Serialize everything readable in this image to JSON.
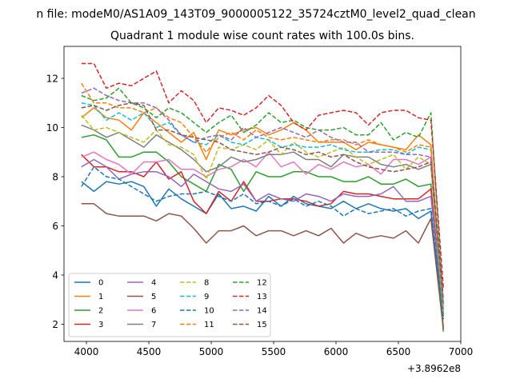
{
  "figure": {
    "suptitle": "n file: modeM0/AS1A09_143T09_9000005122_35724cztM0_level2_quad_clean",
    "offset_label": "+3.8962e8"
  },
  "chart_data": {
    "type": "line",
    "title": "Quadrant 1 module wise count rates with 100.0s bins.",
    "xlabel": "",
    "ylabel": "",
    "xlim": [
      3820,
      7000
    ],
    "ylim": [
      1.3,
      13.3
    ],
    "xticks": [
      4000,
      4500,
      5000,
      5500,
      6000,
      6500,
      7000
    ],
    "yticks": [
      2,
      4,
      6,
      8,
      10,
      12
    ],
    "grid": false,
    "legend": {
      "placement": "lower-left",
      "columns": 4
    },
    "x": [
      3960,
      4060,
      4160,
      4260,
      4360,
      4460,
      4560,
      4660,
      4760,
      4860,
      4960,
      5060,
      5160,
      5260,
      5360,
      5460,
      5560,
      5660,
      5760,
      5860,
      5960,
      6060,
      6160,
      6260,
      6360,
      6460,
      6560,
      6660,
      6760,
      6860
    ],
    "series": [
      {
        "name": "0",
        "color": "#1f77b4",
        "dash": "solid",
        "values": [
          7.8,
          7.4,
          7.8,
          7.7,
          7.8,
          7.6,
          6.8,
          7.5,
          7.1,
          6.8,
          6.5,
          7.3,
          6.7,
          6.8,
          6.6,
          7.2,
          6.8,
          7.2,
          6.9,
          6.8,
          6.7,
          7.0,
          6.7,
          6.9,
          6.7,
          6.6,
          6.7,
          6.3,
          6.6,
          1.9
        ]
      },
      {
        "name": "1",
        "color": "#ff7f0e",
        "dash": "solid",
        "values": [
          10.4,
          10.8,
          10.4,
          10.3,
          9.9,
          10.6,
          10.2,
          9.8,
          9.4,
          9.8,
          8.7,
          9.9,
          9.7,
          9.9,
          10.0,
          9.7,
          9.9,
          10.2,
          9.9,
          9.4,
          9.4,
          9.4,
          9.1,
          9.4,
          9.3,
          9.2,
          9.1,
          9.7,
          9.3,
          1.8
        ]
      },
      {
        "name": "2",
        "color": "#2ca02c",
        "dash": "solid",
        "values": [
          9.6,
          9.7,
          9.5,
          8.8,
          8.8,
          9.0,
          9.0,
          8.6,
          8.0,
          7.7,
          7.4,
          8.5,
          8.3,
          7.4,
          8.2,
          8.0,
          8.0,
          8.2,
          8.2,
          8.0,
          8.0,
          7.8,
          7.8,
          8.0,
          7.7,
          7.7,
          7.9,
          7.6,
          7.7,
          1.7
        ]
      },
      {
        "name": "3",
        "color": "#d62728",
        "dash": "solid",
        "values": [
          8.9,
          8.4,
          8.4,
          8.2,
          8.2,
          8.0,
          8.6,
          7.9,
          8.2,
          7.0,
          6.5,
          7.4,
          7.0,
          7.8,
          7.0,
          7.0,
          7.1,
          7.1,
          7.0,
          6.8,
          6.9,
          7.4,
          7.3,
          7.3,
          7.2,
          7.1,
          7.1,
          7.1,
          7.5,
          2.4
        ]
      },
      {
        "name": "4",
        "color": "#9467bd",
        "dash": "solid",
        "values": [
          8.4,
          8.7,
          8.4,
          7.9,
          8.1,
          8.2,
          8.2,
          8.0,
          7.6,
          8.1,
          7.8,
          7.5,
          7.4,
          7.7,
          7.0,
          7.3,
          7.1,
          7.0,
          7.3,
          7.2,
          7.0,
          7.3,
          7.2,
          7.2,
          7.3,
          7.6,
          7.0,
          7.0,
          7.2,
          2.5
        ]
      },
      {
        "name": "5",
        "color": "#8c564b",
        "dash": "solid",
        "values": [
          6.9,
          6.9,
          6.5,
          6.4,
          6.4,
          6.4,
          6.2,
          6.5,
          6.4,
          5.9,
          5.3,
          5.8,
          5.8,
          6.0,
          5.6,
          5.8,
          5.8,
          5.6,
          5.8,
          5.6,
          5.9,
          5.3,
          5.7,
          5.5,
          5.6,
          5.5,
          5.8,
          5.3,
          6.3,
          1.8
        ]
      },
      {
        "name": "6",
        "color": "#e377c2",
        "dash": "solid",
        "values": [
          8.8,
          9.0,
          8.7,
          8.5,
          8.1,
          8.6,
          8.6,
          8.7,
          8.3,
          8.3,
          8.0,
          8.3,
          8.4,
          8.7,
          8.4,
          9.0,
          8.4,
          8.6,
          8.1,
          8.5,
          8.3,
          8.6,
          8.4,
          8.5,
          8.1,
          8.7,
          8.7,
          8.5,
          8.8,
          2.5
        ]
      },
      {
        "name": "7",
        "color": "#7f7f7f",
        "dash": "solid",
        "values": [
          10.1,
          9.9,
          9.6,
          9.8,
          9.5,
          9.2,
          9.7,
          9.4,
          9.1,
          8.7,
          8.2,
          8.4,
          8.8,
          8.6,
          8.7,
          8.9,
          8.9,
          9.0,
          8.7,
          8.7,
          8.4,
          8.9,
          8.8,
          8.8,
          8.5,
          8.4,
          8.5,
          8.3,
          8.5,
          2.3
        ]
      },
      {
        "name": "8",
        "color": "#bcbd22",
        "dash": "dashed",
        "values": [
          10.5,
          9.9,
          10.0,
          9.8,
          9.6,
          9.4,
          9.9,
          9.3,
          9.2,
          8.9,
          7.9,
          9.2,
          9.1,
          9.3,
          9.1,
          9.5,
          8.9,
          9.4,
          9.0,
          8.8,
          9.0,
          9.2,
          8.8,
          8.5,
          8.7,
          8.9,
          8.3,
          8.8,
          8.5,
          2.4
        ]
      },
      {
        "name": "9",
        "color": "#17becf",
        "dash": "dashed",
        "values": [
          11.0,
          10.9,
          10.3,
          10.6,
          10.3,
          10.6,
          10.0,
          10.2,
          9.7,
          9.4,
          9.3,
          9.7,
          9.4,
          9.3,
          9.6,
          9.5,
          9.2,
          9.3,
          9.2,
          9.2,
          9.3,
          9.1,
          9.0,
          9.0,
          9.1,
          9.1,
          8.9,
          9.2,
          9.1,
          2.6
        ]
      },
      {
        "name": "10",
        "color": "#1f77b4",
        "dash": "dashed",
        "values": [
          7.6,
          8.4,
          8.0,
          7.9,
          7.6,
          7.3,
          7.0,
          7.2,
          7.3,
          7.3,
          7.4,
          7.2,
          7.0,
          7.3,
          6.9,
          7.0,
          6.8,
          7.1,
          6.8,
          7.0,
          6.8,
          6.4,
          6.7,
          6.5,
          6.6,
          6.7,
          6.4,
          6.6,
          6.7,
          2.2
        ]
      },
      {
        "name": "11",
        "color": "#ff7f0e",
        "dash": "dashed",
        "values": [
          11.8,
          11.0,
          11.0,
          10.8,
          10.8,
          10.6,
          10.8,
          10.4,
          10.2,
          9.6,
          9.0,
          9.6,
          9.8,
          9.5,
          9.9,
          9.6,
          9.5,
          9.6,
          9.5,
          9.4,
          9.5,
          9.5,
          9.3,
          9.5,
          9.3,
          9.2,
          9.0,
          9.3,
          9.2,
          2.7
        ]
      },
      {
        "name": "12",
        "color": "#2ca02c",
        "dash": "dashed",
        "values": [
          11.3,
          11.1,
          11.2,
          11.6,
          11.0,
          10.8,
          10.4,
          10.8,
          10.6,
          10.2,
          9.8,
          10.2,
          10.5,
          9.8,
          10.1,
          10.6,
          10.2,
          10.3,
          10.0,
          9.9,
          9.9,
          10.0,
          9.7,
          9.7,
          10.2,
          9.5,
          9.8,
          9.6,
          10.6,
          2.9
        ]
      },
      {
        "name": "13",
        "color": "#d62728",
        "dash": "dashed",
        "values": [
          12.6,
          12.6,
          11.6,
          11.8,
          11.7,
          12.0,
          12.3,
          11.0,
          11.5,
          11.1,
          10.2,
          10.8,
          10.7,
          10.5,
          10.8,
          11.3,
          10.9,
          10.2,
          9.9,
          10.5,
          10.6,
          10.7,
          10.6,
          10.1,
          10.6,
          10.7,
          10.7,
          10.4,
          10.3,
          3.5
        ]
      },
      {
        "name": "14",
        "color": "#9467bd",
        "dash": "dashed",
        "values": [
          11.4,
          11.6,
          11.3,
          11.1,
          11.0,
          11.0,
          10.8,
          10.3,
          9.7,
          9.4,
          9.6,
          9.7,
          9.5,
          10.0,
          9.6,
          9.8,
          10.0,
          9.8,
          9.6,
          9.9,
          9.6,
          9.4,
          9.4,
          9.0,
          9.0,
          9.0,
          8.9,
          8.9,
          8.8,
          2.8
        ]
      },
      {
        "name": "15",
        "color": "#8c564b",
        "dash": "dashed",
        "values": [
          10.8,
          10.9,
          10.7,
          10.9,
          11.0,
          10.9,
          9.9,
          9.9,
          9.7,
          9.6,
          9.5,
          9.4,
          9.1,
          9.0,
          8.9,
          9.0,
          9.2,
          9.1,
          8.9,
          9.0,
          8.8,
          8.9,
          8.6,
          8.4,
          8.3,
          8.2,
          8.3,
          8.4,
          8.6,
          3.0
        ]
      }
    ]
  }
}
